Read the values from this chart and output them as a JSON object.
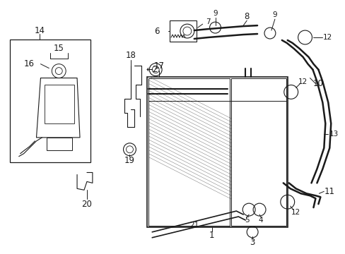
{
  "bg_color": "#ffffff",
  "line_color": "#1a1a1a",
  "figsize": [
    4.89,
    3.6
  ],
  "dpi": 100,
  "font_size": 8.5,
  "font_size_sm": 7.5
}
